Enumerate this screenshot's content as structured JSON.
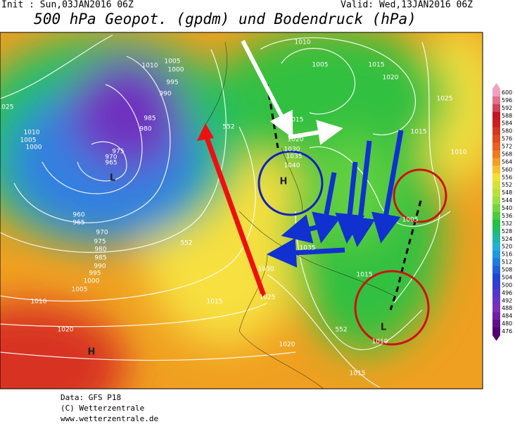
{
  "header": {
    "init": "Init : Sun,03JAN2016 06Z",
    "valid": "Valid: Wed,13JAN2016 06Z",
    "title": "500 hPa Geopot. (gpdm) und Bodendruck (hPa)"
  },
  "map": {
    "labels": [
      "1010",
      "1005",
      "1015",
      "1020",
      "1025",
      "1025",
      "1010",
      "1005",
      "1000",
      "995",
      "990",
      "985",
      "980",
      "1010",
      "1005",
      "1000",
      "975",
      "970",
      "965",
      "L",
      "552",
      "1015",
      "1020",
      "1030",
      "1035",
      "1040",
      "H",
      "1015",
      "1010",
      "960",
      "965",
      "970",
      "975",
      "980",
      "985",
      "990",
      "995",
      "1000",
      "1005",
      "1010",
      "552",
      "1035",
      "1030",
      "1015",
      "1025",
      "1015",
      "1020",
      "H",
      "1020",
      "552",
      "1010",
      "L",
      "1005",
      "1015"
    ]
  },
  "legend": {
    "values": [
      600,
      596,
      592,
      588,
      584,
      580,
      576,
      572,
      568,
      564,
      560,
      556,
      552,
      548,
      544,
      540,
      536,
      532,
      528,
      524,
      520,
      516,
      512,
      508,
      504,
      500,
      496,
      492,
      488,
      484,
      480,
      476
    ]
  },
  "footer": {
    "lines": [
      "Data: GFS P18",
      "(C) Wetterzentrale",
      "www.wetterzentrale.de"
    ]
  }
}
